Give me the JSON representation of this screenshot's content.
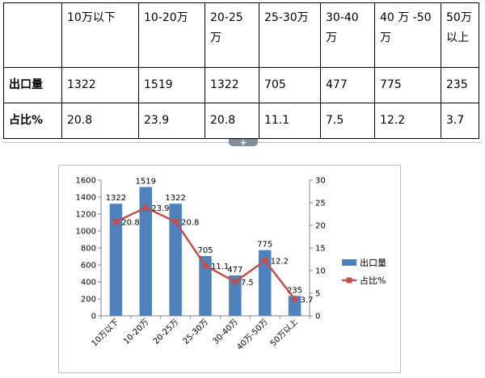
{
  "table": {
    "headers": [
      "",
      "10万以下",
      "10-20万",
      "20-25万",
      "25-30万",
      "30-40万",
      "40 万 -50万",
      "50万以上"
    ],
    "rows": [
      {
        "label": "出口量",
        "cells": [
          "1322",
          "1519",
          "1322",
          "705",
          "477",
          "775",
          "235"
        ]
      },
      {
        "label": "占比%",
        "cells": [
          "20.8",
          "23.9",
          "20.8",
          "11.1",
          "7.5",
          "12.2",
          "3.7"
        ]
      }
    ]
  },
  "collapse_button": {
    "icon": "+"
  },
  "chart_data": {
    "type": "bar",
    "categories": [
      "10万以下",
      "10-20万",
      "20-25万",
      "25-30万",
      "30-40万",
      "40万-50万",
      "50万以上"
    ],
    "series": [
      {
        "name": "出口量",
        "type": "bar",
        "axis": "left",
        "values": [
          1322,
          1519,
          1322,
          705,
          477,
          775,
          235
        ],
        "color": "#4f81bd"
      },
      {
        "name": "占比%",
        "type": "line",
        "axis": "right",
        "values": [
          20.8,
          23.9,
          20.8,
          11.1,
          7.5,
          12.2,
          3.7
        ],
        "color": "#c0504d"
      }
    ],
    "ylim": [
      0,
      1600
    ],
    "y2lim": [
      0,
      30
    ],
    "yticks": [
      "0",
      "200",
      "400",
      "600",
      "800",
      "1000",
      "1200",
      "1400",
      "1600"
    ],
    "y2ticks": [
      "0",
      "5",
      "10",
      "15",
      "20",
      "25",
      "30"
    ],
    "data_labels": true,
    "grid": false,
    "legend_position": "right"
  }
}
